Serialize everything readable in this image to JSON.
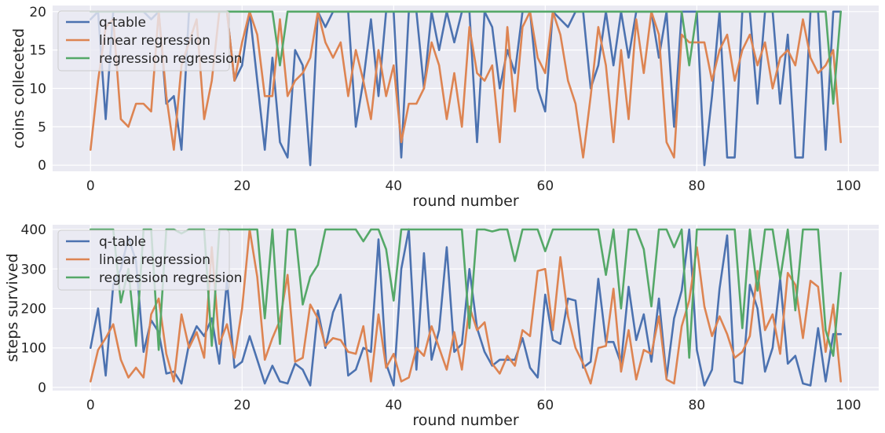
{
  "chart_data": [
    {
      "type": "line",
      "title": "",
      "xlabel": "round number",
      "ylabel": "coins colleceted",
      "xlim": [
        -5,
        104
      ],
      "ylim": [
        -0.8,
        20.8
      ],
      "xticks": [
        0,
        20,
        40,
        60,
        80,
        100
      ],
      "yticks": [
        0,
        5,
        10,
        15,
        20
      ],
      "grid": true,
      "legend_position": "upper-left",
      "x": [
        0,
        1,
        2,
        3,
        4,
        5,
        6,
        7,
        8,
        9,
        10,
        11,
        12,
        13,
        14,
        15,
        16,
        17,
        18,
        19,
        20,
        21,
        22,
        23,
        24,
        25,
        26,
        27,
        28,
        29,
        30,
        31,
        32,
        33,
        34,
        35,
        36,
        37,
        38,
        39,
        40,
        41,
        42,
        43,
        44,
        45,
        46,
        47,
        48,
        49,
        50,
        51,
        52,
        53,
        54,
        55,
        56,
        57,
        58,
        59,
        60,
        61,
        62,
        63,
        64,
        65,
        66,
        67,
        68,
        69,
        70,
        71,
        72,
        73,
        74,
        75,
        76,
        77,
        78,
        79,
        80,
        81,
        82,
        83,
        84,
        85,
        86,
        87,
        88,
        89,
        90,
        91,
        92,
        93,
        94,
        95,
        96,
        97,
        98,
        99
      ],
      "series": [
        {
          "name": "q-table",
          "color": "#4c72b0",
          "values": [
            19,
            20,
            6,
            20,
            20,
            20,
            20,
            20,
            19,
            20,
            8,
            9,
            2,
            20,
            20,
            20,
            20,
            20,
            20,
            11,
            13,
            20,
            11,
            2,
            14,
            3,
            1,
            15,
            13,
            0,
            20,
            18,
            20,
            20,
            20,
            5,
            11,
            19,
            9,
            20,
            20,
            1,
            20,
            20,
            10,
            20,
            15,
            20,
            16,
            20,
            20,
            3,
            20,
            18,
            10,
            15,
            12,
            20,
            20,
            10,
            7,
            20,
            19,
            18,
            20,
            20,
            10,
            13,
            20,
            13,
            20,
            14,
            20,
            20,
            20,
            14,
            20,
            5,
            20,
            20,
            20,
            0,
            9,
            20,
            1,
            1,
            20,
            20,
            8,
            20,
            20,
            8,
            17,
            1,
            1,
            20,
            20,
            2,
            20,
            20
          ]
        },
        {
          "name": "linear regression",
          "color": "#dd8452",
          "values": [
            2,
            11,
            18,
            19,
            6,
            5,
            8,
            8,
            7,
            20,
            9,
            2,
            13,
            16,
            19,
            6,
            11,
            20,
            20,
            11,
            16,
            20,
            17,
            9,
            9,
            19,
            9,
            11,
            12,
            14,
            20,
            16,
            14,
            16,
            9,
            15,
            11,
            6,
            15,
            9,
            13,
            3,
            8,
            8,
            10,
            16,
            13,
            6,
            12,
            5,
            18,
            12,
            11,
            13,
            3,
            18,
            7,
            18,
            20,
            14,
            12,
            20,
            17,
            11,
            8,
            1,
            9,
            18,
            13,
            3,
            15,
            6,
            19,
            12,
            20,
            17,
            3,
            1,
            17,
            16,
            16,
            16,
            11,
            15,
            17,
            11,
            15,
            17,
            13,
            16,
            10,
            14,
            15,
            13,
            19,
            14,
            12,
            13,
            15,
            3
          ]
        },
        {
          "name": "regression regression",
          "color": "#55a868",
          "values": [
            20,
            20,
            20,
            20,
            20,
            20,
            20,
            20,
            20,
            20,
            20,
            20,
            20,
            20,
            20,
            20,
            20,
            20,
            20,
            20,
            20,
            20,
            20,
            20,
            20,
            13,
            20,
            20,
            20,
            20,
            20,
            20,
            20,
            20,
            20,
            20,
            20,
            20,
            20,
            20,
            20,
            20,
            20,
            20,
            20,
            20,
            20,
            20,
            20,
            20,
            20,
            20,
            20,
            20,
            20,
            20,
            20,
            20,
            20,
            20,
            20,
            20,
            20,
            20,
            20,
            20,
            20,
            20,
            20,
            20,
            20,
            20,
            20,
            20,
            20,
            20,
            20,
            20,
            20,
            13,
            20,
            20,
            20,
            20,
            20,
            20,
            20,
            20,
            20,
            20,
            20,
            20,
            20,
            20,
            20,
            20,
            20,
            20,
            8,
            20
          ]
        }
      ]
    },
    {
      "type": "line",
      "title": "",
      "xlabel": "round number",
      "ylabel": "steps survived",
      "xlim": [
        -5,
        104
      ],
      "ylim": [
        -8,
        412
      ],
      "xticks": [
        0,
        20,
        40,
        60,
        80,
        100
      ],
      "yticks": [
        0,
        100,
        200,
        300,
        400
      ],
      "grid": true,
      "legend_position": "upper-left",
      "x": [
        0,
        1,
        2,
        3,
        4,
        5,
        6,
        7,
        8,
        9,
        10,
        11,
        12,
        13,
        14,
        15,
        16,
        17,
        18,
        19,
        20,
        21,
        22,
        23,
        24,
        25,
        26,
        27,
        28,
        29,
        30,
        31,
        32,
        33,
        34,
        35,
        36,
        37,
        38,
        39,
        40,
        41,
        42,
        43,
        44,
        45,
        46,
        47,
        48,
        49,
        50,
        51,
        52,
        53,
        54,
        55,
        56,
        57,
        58,
        59,
        60,
        61,
        62,
        63,
        64,
        65,
        66,
        67,
        68,
        69,
        70,
        71,
        72,
        73,
        74,
        75,
        76,
        77,
        78,
        79,
        80,
        81,
        82,
        83,
        84,
        85,
        86,
        87,
        88,
        89,
        90,
        91,
        92,
        93,
        94,
        95,
        96,
        97,
        98,
        99
      ],
      "series": [
        {
          "name": "q-table",
          "color": "#4c72b0",
          "values": [
            100,
            200,
            30,
            260,
            300,
            380,
            320,
            90,
            170,
            140,
            35,
            40,
            10,
            110,
            155,
            130,
            175,
            60,
            270,
            50,
            65,
            130,
            70,
            10,
            55,
            15,
            10,
            60,
            45,
            5,
            195,
            100,
            190,
            235,
            30,
            45,
            100,
            90,
            375,
            60,
            5,
            300,
            400,
            45,
            340,
            70,
            145,
            355,
            90,
            110,
            300,
            150,
            90,
            55,
            70,
            70,
            70,
            125,
            50,
            25,
            235,
            120,
            110,
            225,
            220,
            50,
            65,
            275,
            115,
            115,
            60,
            255,
            120,
            185,
            65,
            225,
            25,
            175,
            245,
            400,
            95,
            5,
            45,
            250,
            385,
            15,
            10,
            260,
            200,
            40,
            100,
            275,
            60,
            80,
            10,
            5,
            150,
            15,
            135,
            135
          ]
        },
        {
          "name": "linear regression",
          "color": "#dd8452",
          "values": [
            15,
            95,
            125,
            160,
            70,
            25,
            50,
            25,
            185,
            225,
            85,
            15,
            185,
            100,
            140,
            75,
            355,
            110,
            160,
            75,
            200,
            400,
            280,
            70,
            125,
            170,
            285,
            65,
            75,
            210,
            175,
            105,
            125,
            120,
            90,
            85,
            155,
            15,
            185,
            50,
            85,
            15,
            25,
            100,
            80,
            155,
            100,
            45,
            140,
            45,
            205,
            145,
            165,
            60,
            35,
            80,
            55,
            145,
            130,
            295,
            300,
            145,
            330,
            180,
            100,
            60,
            10,
            100,
            105,
            250,
            40,
            145,
            20,
            95,
            85,
            180,
            20,
            10,
            155,
            220,
            355,
            205,
            130,
            180,
            135,
            75,
            90,
            130,
            295,
            145,
            185,
            85,
            290,
            260,
            125,
            270,
            255,
            90,
            210,
            15
          ]
        },
        {
          "name": "regression regression",
          "color": "#55a868",
          "values": [
            400,
            400,
            400,
            400,
            215,
            300,
            105,
            400,
            400,
            95,
            400,
            400,
            390,
            400,
            400,
            400,
            105,
            400,
            400,
            400,
            400,
            400,
            400,
            175,
            400,
            110,
            400,
            400,
            210,
            280,
            310,
            400,
            400,
            400,
            400,
            400,
            370,
            400,
            400,
            350,
            220,
            400,
            400,
            400,
            400,
            400,
            400,
            400,
            400,
            400,
            150,
            400,
            400,
            395,
            400,
            400,
            320,
            400,
            400,
            400,
            345,
            400,
            400,
            400,
            400,
            400,
            400,
            400,
            285,
            400,
            200,
            400,
            400,
            350,
            205,
            400,
            400,
            355,
            400,
            75,
            400,
            400,
            400,
            400,
            400,
            400,
            150,
            400,
            245,
            400,
            400,
            275,
            400,
            195,
            400,
            400,
            400,
            145,
            80,
            290
          ]
        }
      ]
    }
  ]
}
